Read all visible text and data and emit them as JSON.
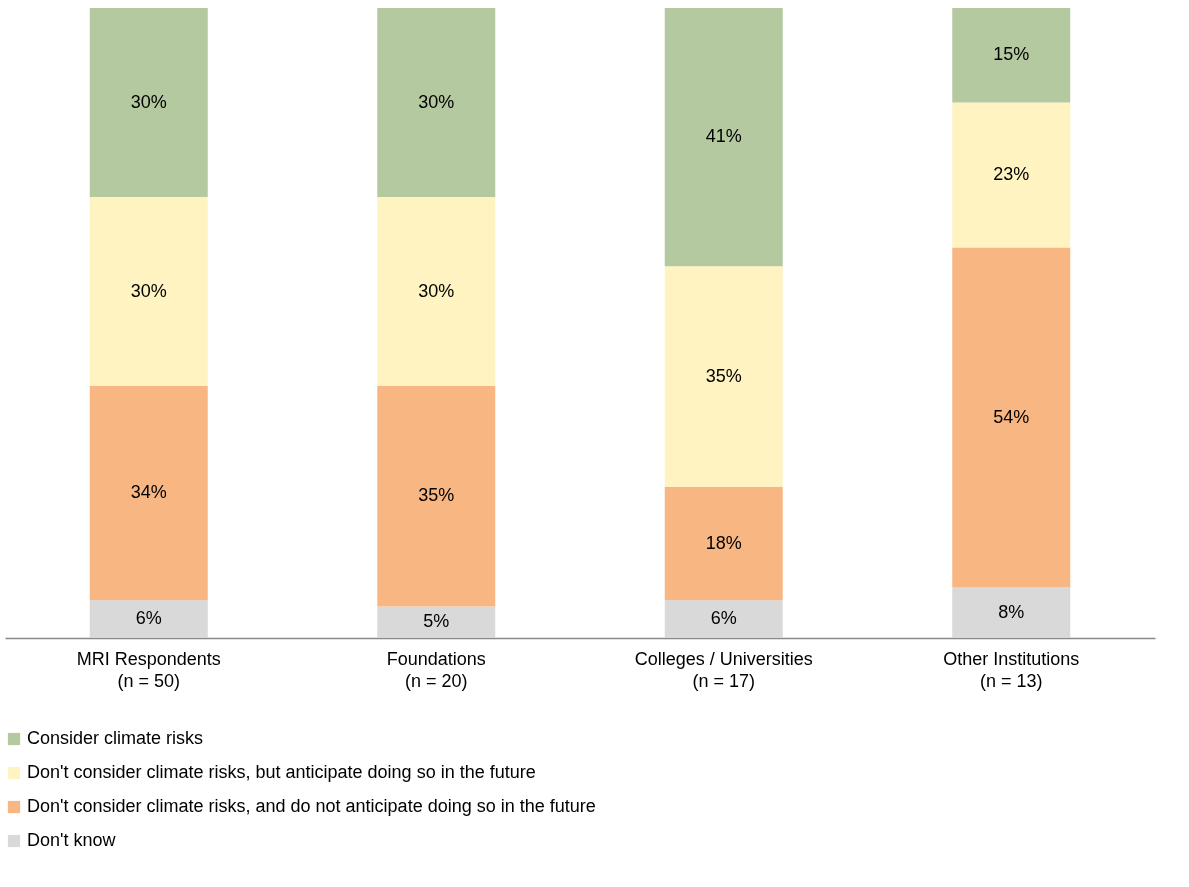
{
  "chart_data": {
    "type": "bar",
    "stacked": true,
    "categories": [
      "MRI Respondents\n(n = 50)",
      "Foundations\n(n = 20)",
      "Colleges / Universities\n(n = 17)",
      "Other Institutions\n(n = 13)"
    ],
    "series": [
      {
        "name": "Don't know",
        "color": "#d9d9d9",
        "values": [
          6,
          5,
          6,
          8
        ],
        "value_labels": [
          "6%",
          "5%",
          "6%",
          "8%"
        ]
      },
      {
        "name": "Don't consider climate risks, and do not anticipate doing so in the future",
        "color": "#f8b682",
        "values": [
          34,
          35,
          18,
          54
        ],
        "value_labels": [
          "34%",
          "35%",
          "18%",
          "54%"
        ]
      },
      {
        "name": "Don't consider climate risks, but anticipate doing so in the future",
        "color": "#fef3c1",
        "values": [
          30,
          30,
          35,
          23
        ],
        "value_labels": [
          "30%",
          "30%",
          "35%",
          "23%"
        ]
      },
      {
        "name": "Consider climate risks",
        "color": "#b4c9a0",
        "values": [
          30,
          30,
          41,
          15
        ],
        "value_labels": [
          "30%",
          "30%",
          "41%",
          "15%"
        ]
      }
    ],
    "ylim": [
      0,
      100
    ],
    "tick_labels": "x",
    "legend": "bottom"
  }
}
